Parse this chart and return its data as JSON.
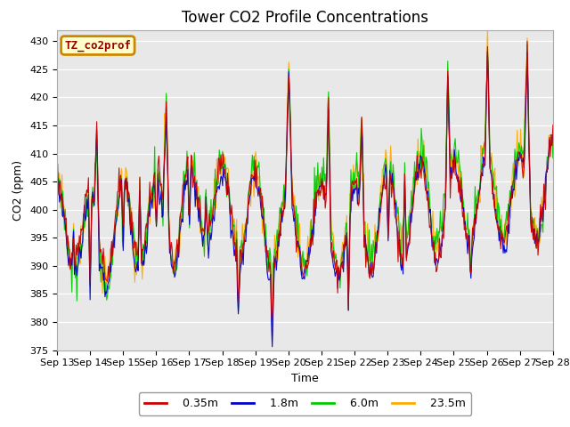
{
  "title": "Tower CO2 Profile Concentrations",
  "xlabel": "Time",
  "ylabel": "CO2 (ppm)",
  "ylim": [
    375,
    432
  ],
  "yticks": [
    375,
    380,
    385,
    390,
    395,
    400,
    405,
    410,
    415,
    420,
    425,
    430
  ],
  "bg_color": "#e8e8e8",
  "line_colors": [
    "#cc0000",
    "#0000cc",
    "#00cc00",
    "#ffaa00"
  ],
  "line_labels": [
    "0.35m",
    "1.8m",
    "6.0m",
    "23.5m"
  ],
  "line_width": 0.8,
  "n_points": 600,
  "n_days": 15,
  "date_start": 13,
  "date_end": 28,
  "legend_label": "TZ_co2prof",
  "legend_bg": "#ffffcc",
  "legend_border": "#cc8800",
  "title_fontsize": 12,
  "axis_label_fontsize": 9,
  "tick_fontsize": 8,
  "figwidth": 6.4,
  "figheight": 4.8,
  "dpi": 100
}
